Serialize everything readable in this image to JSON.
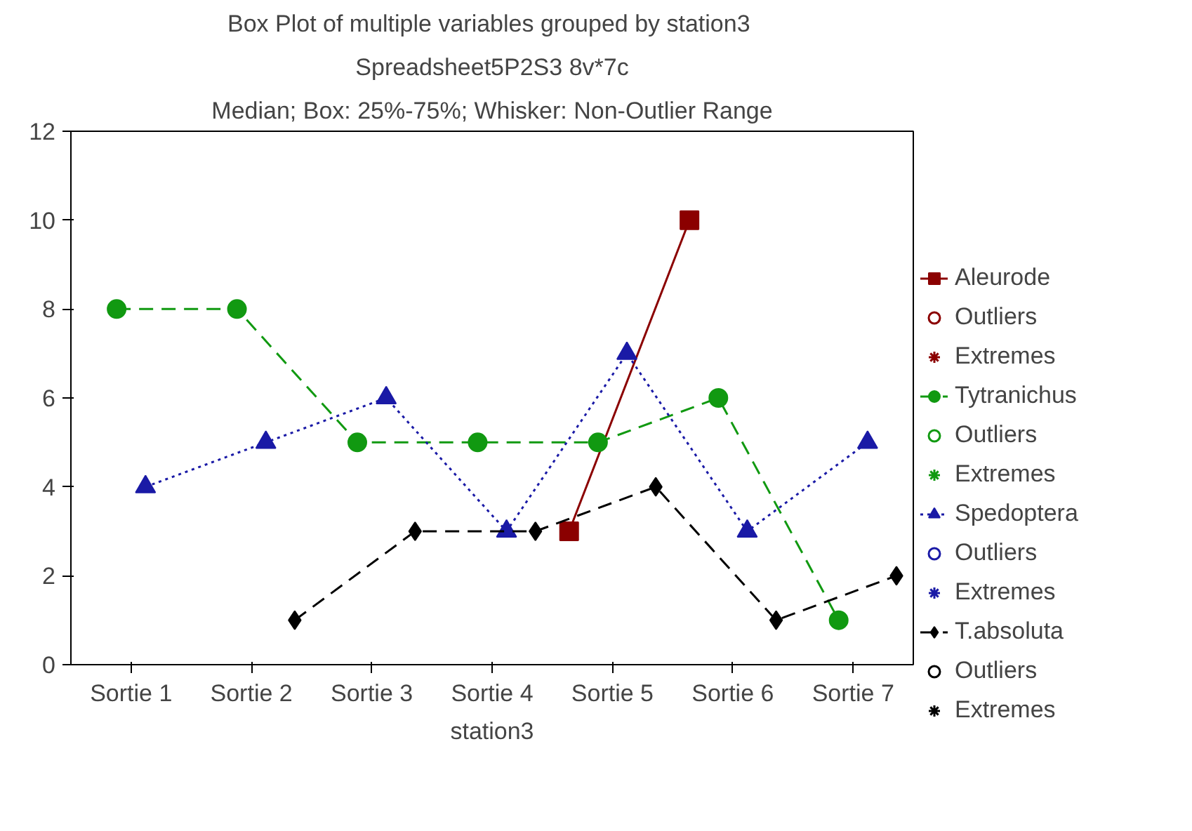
{
  "chart_data": {
    "type": "line",
    "title": "Box Plot of multiple variables grouped by  station3",
    "subtitle": "Spreadsheet5P2S3 8v*7c",
    "annotations": [
      "Median; Box: 25%-75%; Whisker: Non-Outlier Range"
    ],
    "xlabel": "station3",
    "categories": [
      "Sortie 1",
      "Sortie 2",
      "Sortie 3",
      "Sortie 4",
      "Sortie 5",
      "Sortie 6",
      "Sortie 7"
    ],
    "ylim": [
      0,
      12
    ],
    "yticks": [
      0,
      2,
      4,
      6,
      8,
      10,
      12
    ],
    "grid": false,
    "legend": "right",
    "series": [
      {
        "name": "Aleurode",
        "color": "#8b0000",
        "marker": "square",
        "line_style": "solid",
        "values": [
          null,
          null,
          null,
          null,
          3,
          10,
          null
        ]
      },
      {
        "name": "Outliers",
        "type": "scatter",
        "color": "#8b0000",
        "marker": "circle",
        "values": [
          null,
          null,
          null,
          null,
          null,
          null,
          null
        ]
      },
      {
        "name": "Extremes",
        "type": "scatter",
        "color": "#8b0000",
        "marker": "star",
        "values": [
          null,
          null,
          null,
          null,
          null,
          null,
          null
        ]
      },
      {
        "name": "Tytranichus",
        "color": "#119911",
        "marker": "circle",
        "line_style": "dashed",
        "values": [
          8,
          8,
          5,
          5,
          5,
          6,
          1
        ]
      },
      {
        "name": "Outliers",
        "type": "scatter",
        "color": "#119911",
        "marker": "circle",
        "values": [
          null,
          null,
          null,
          null,
          null,
          null,
          null
        ]
      },
      {
        "name": "Extremes",
        "type": "scatter",
        "color": "#119911",
        "marker": "star",
        "values": [
          null,
          null,
          null,
          null,
          null,
          null,
          null
        ]
      },
      {
        "name": "Spedoptera",
        "color": "#1a1aa6",
        "marker": "triangle",
        "line_style": "dotted",
        "values": [
          4,
          5,
          6,
          3,
          7,
          3,
          5
        ]
      },
      {
        "name": "Outliers",
        "type": "scatter",
        "color": "#1a1aa6",
        "marker": "circle",
        "values": [
          null,
          null,
          null,
          null,
          null,
          null,
          null
        ]
      },
      {
        "name": "Extremes",
        "type": "scatter",
        "color": "#1a1aa6",
        "marker": "star",
        "values": [
          null,
          null,
          null,
          null,
          null,
          null,
          null
        ]
      },
      {
        "name": "T.absoluta",
        "color": "#000000",
        "marker": "diamond",
        "line_style": "dashed",
        "values": [
          null,
          1,
          3,
          3,
          4,
          1,
          2
        ]
      },
      {
        "name": "Outliers",
        "type": "scatter",
        "color": "#000000",
        "marker": "circle",
        "values": [
          null,
          null,
          null,
          null,
          null,
          null,
          null
        ]
      },
      {
        "name": "Extremes",
        "type": "scatter",
        "color": "#000000",
        "marker": "star",
        "values": [
          null,
          null,
          null,
          null,
          null,
          null,
          null
        ]
      }
    ]
  }
}
